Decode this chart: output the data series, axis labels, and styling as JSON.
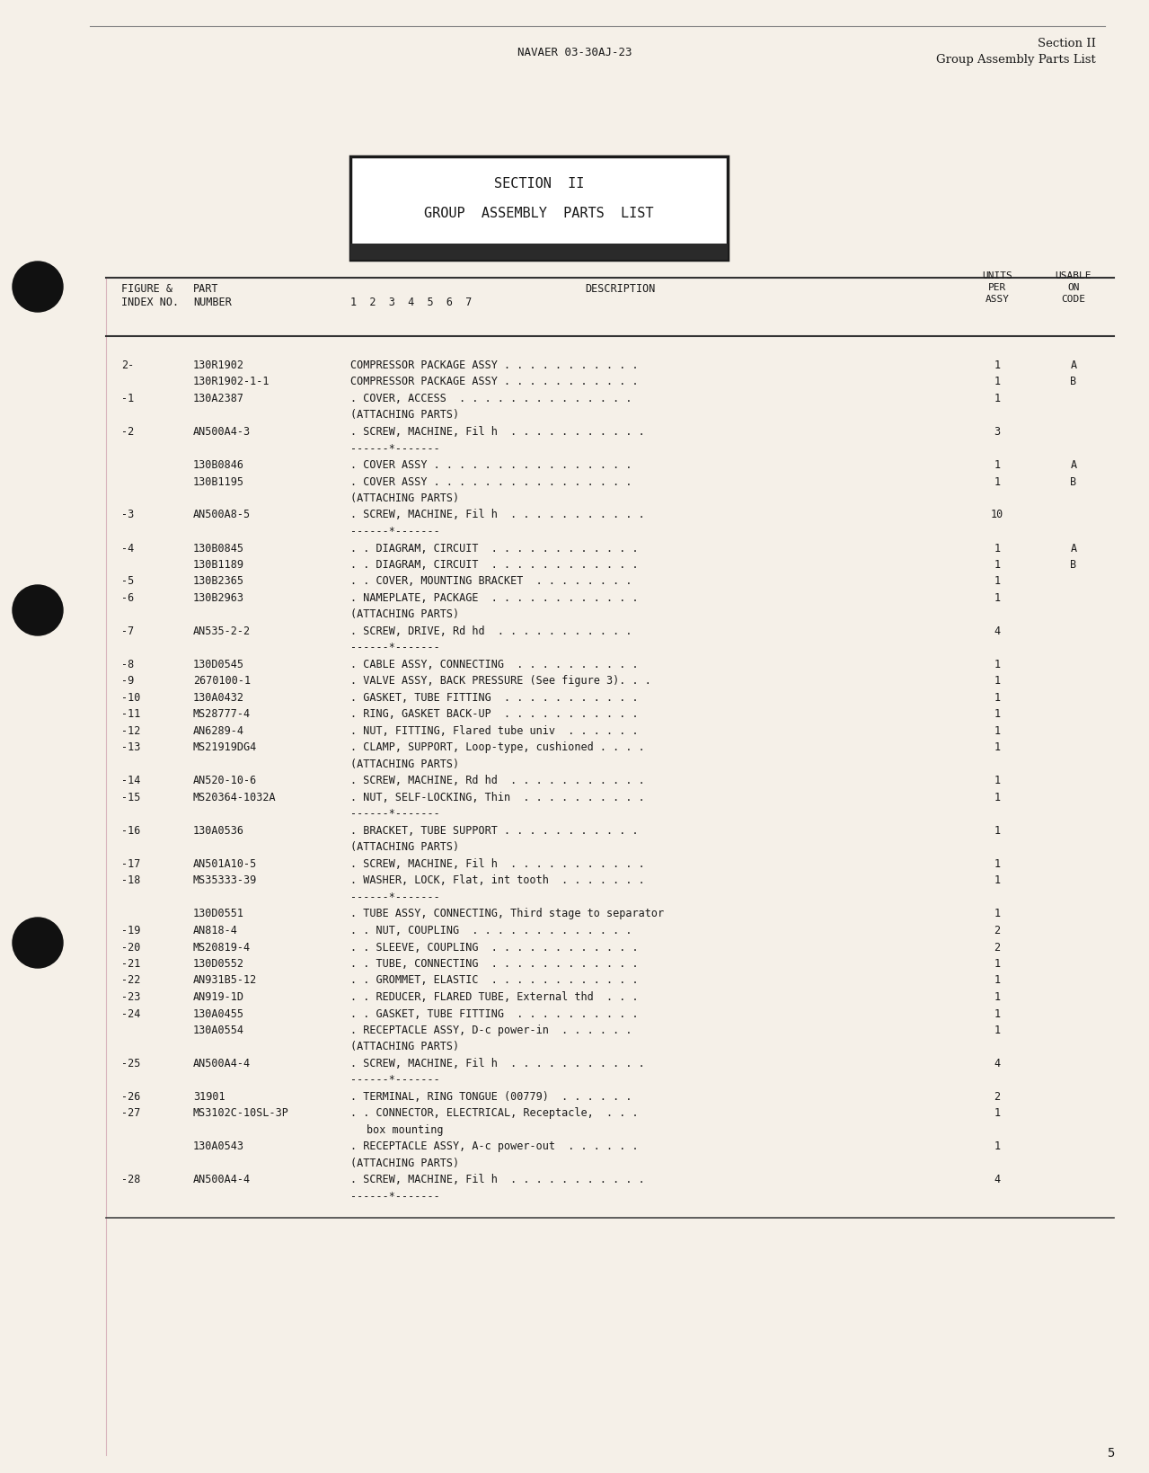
{
  "page_bg": "#f5f0e8",
  "header_text_center": "NAVAER 03-30AJ-23",
  "header_text_right_line1": "Section II",
  "header_text_right_line2": "Group Assembly Parts List",
  "section_box_line1": "SECTION  II",
  "section_box_line2": "GROUP  ASSEMBLY  PARTS  LIST",
  "col_headers": {
    "fig_index": "FIGURE &\nINDEX NO.",
    "part_num": "PART\nNUMBER",
    "description": "DESCRIPTION\n1  2  3  4  5  6  7",
    "units_per_assy": "UNITS\nPER\nASSY",
    "usable_on_code": "USABLE\nON\nCODE"
  },
  "rows": [
    {
      "index": "2-",
      "part": "130R1902",
      "desc": "COMPRESSOR PACKAGE ASSY . . . . . . . . . . .",
      "units": "1",
      "code": "A"
    },
    {
      "index": "",
      "part": "130R1902-1-1",
      "desc": "COMPRESSOR PACKAGE ASSY . . . . . . . . . . .",
      "units": "1",
      "code": "B"
    },
    {
      "index": "-1",
      "part": "130A2387",
      "desc": ". COVER, ACCESS  . . . . . . . . . . . . . .",
      "units": "1",
      "code": ""
    },
    {
      "index": "",
      "part": "",
      "desc": "(ATTACHING PARTS)",
      "units": "",
      "code": ""
    },
    {
      "index": "-2",
      "part": "AN500A4-3",
      "desc": ". SCREW, MACHINE, Fil h  . . . . . . . . . . .",
      "units": "3",
      "code": ""
    },
    {
      "index": "",
      "part": "",
      "desc": "------*-------",
      "units": "",
      "code": ""
    },
    {
      "index": "",
      "part": "130B0846",
      "desc": ". COVER ASSY . . . . . . . . . . . . . . . .",
      "units": "1",
      "code": "A"
    },
    {
      "index": "",
      "part": "130B1195",
      "desc": ". COVER ASSY . . . . . . . . . . . . . . . .",
      "units": "1",
      "code": "B"
    },
    {
      "index": "",
      "part": "",
      "desc": "(ATTACHING PARTS)",
      "units": "",
      "code": ""
    },
    {
      "index": "-3",
      "part": "AN500A8-5",
      "desc": ". SCREW, MACHINE, Fil h  . . . . . . . . . . .",
      "units": "10",
      "code": ""
    },
    {
      "index": "",
      "part": "",
      "desc": "------*-------",
      "units": "",
      "code": ""
    },
    {
      "index": "-4",
      "part": "130B0845",
      "desc": ". . DIAGRAM, CIRCUIT  . . . . . . . . . . . .",
      "units": "1",
      "code": "A"
    },
    {
      "index": "",
      "part": "130B1189",
      "desc": ". . DIAGRAM, CIRCUIT  . . . . . . . . . . . .",
      "units": "1",
      "code": "B"
    },
    {
      "index": "-5",
      "part": "130B2365",
      "desc": ". . COVER, MOUNTING BRACKET  . . . . . . . .",
      "units": "1",
      "code": ""
    },
    {
      "index": "-6",
      "part": "130B2963",
      "desc": ". NAMEPLATE, PACKAGE  . . . . . . . . . . . .",
      "units": "1",
      "code": ""
    },
    {
      "index": "",
      "part": "",
      "desc": "(ATTACHING PARTS)",
      "units": "",
      "code": ""
    },
    {
      "index": "-7",
      "part": "AN535-2-2",
      "desc": ". SCREW, DRIVE, Rd hd  . . . . . . . . . . .",
      "units": "4",
      "code": ""
    },
    {
      "index": "",
      "part": "",
      "desc": "------*-------",
      "units": "",
      "code": ""
    },
    {
      "index": "-8",
      "part": "130D0545",
      "desc": ". CABLE ASSY, CONNECTING  . . . . . . . . . .",
      "units": "1",
      "code": ""
    },
    {
      "index": "-9",
      "part": "2670100-1",
      "desc": ". VALVE ASSY, BACK PRESSURE (See figure 3). . .",
      "units": "1",
      "code": ""
    },
    {
      "index": "-10",
      "part": "130A0432",
      "desc": ". GASKET, TUBE FITTING  . . . . . . . . . . .",
      "units": "1",
      "code": ""
    },
    {
      "index": "-11",
      "part": "MS28777-4",
      "desc": ". RING, GASKET BACK-UP  . . . . . . . . . . .",
      "units": "1",
      "code": ""
    },
    {
      "index": "-12",
      "part": "AN6289-4",
      "desc": ". NUT, FITTING, Flared tube univ  . . . . . .",
      "units": "1",
      "code": ""
    },
    {
      "index": "-13",
      "part": "MS21919DG4",
      "desc": ". CLAMP, SUPPORT, Loop-type, cushioned . . . .",
      "units": "1",
      "code": ""
    },
    {
      "index": "",
      "part": "",
      "desc": "(ATTACHING PARTS)",
      "units": "",
      "code": ""
    },
    {
      "index": "-14",
      "part": "AN520-10-6",
      "desc": ". SCREW, MACHINE, Rd hd  . . . . . . . . . . .",
      "units": "1",
      "code": ""
    },
    {
      "index": "-15",
      "part": "MS20364-1032A",
      "desc": ". NUT, SELF-LOCKING, Thin  . . . . . . . . . .",
      "units": "1",
      "code": ""
    },
    {
      "index": "",
      "part": "",
      "desc": "------*-------",
      "units": "",
      "code": ""
    },
    {
      "index": "-16",
      "part": "130A0536",
      "desc": ". BRACKET, TUBE SUPPORT . . . . . . . . . . .",
      "units": "1",
      "code": ""
    },
    {
      "index": "",
      "part": "",
      "desc": "(ATTACHING PARTS)",
      "units": "",
      "code": ""
    },
    {
      "index": "-17",
      "part": "AN501A10-5",
      "desc": ". SCREW, MACHINE, Fil h  . . . . . . . . . . .",
      "units": "1",
      "code": ""
    },
    {
      "index": "-18",
      "part": "MS35333-39",
      "desc": ". WASHER, LOCK, Flat, int tooth  . . . . . . .",
      "units": "1",
      "code": ""
    },
    {
      "index": "",
      "part": "",
      "desc": "------*-------",
      "units": "",
      "code": ""
    },
    {
      "index": "",
      "part": "130D0551",
      "desc": ". TUBE ASSY, CONNECTING, Third stage to separator",
      "units": "1",
      "code": ""
    },
    {
      "index": "-19",
      "part": "AN818-4",
      "desc": ". . NUT, COUPLING  . . . . . . . . . . . . .",
      "units": "2",
      "code": ""
    },
    {
      "index": "-20",
      "part": "MS20819-4",
      "desc": ". . SLEEVE, COUPLING  . . . . . . . . . . . .",
      "units": "2",
      "code": ""
    },
    {
      "index": "-21",
      "part": "130D0552",
      "desc": ". . TUBE, CONNECTING  . . . . . . . . . . . .",
      "units": "1",
      "code": ""
    },
    {
      "index": "-22",
      "part": "AN931B5-12",
      "desc": ". . GROMMET, ELASTIC  . . . . . . . . . . . .",
      "units": "1",
      "code": ""
    },
    {
      "index": "-23",
      "part": "AN919-1D",
      "desc": ". . REDUCER, FLARED TUBE, External thd  . . .",
      "units": "1",
      "code": ""
    },
    {
      "index": "-24",
      "part": "130A0455",
      "desc": ". . GASKET, TUBE FITTING  . . . . . . . . . .",
      "units": "1",
      "code": ""
    },
    {
      "index": "",
      "part": "130A0554",
      "desc": ". RECEPTACLE ASSY, D-c power-in  . . . . . .",
      "units": "1",
      "code": ""
    },
    {
      "index": "",
      "part": "",
      "desc": "(ATTACHING PARTS)",
      "units": "",
      "code": ""
    },
    {
      "index": "-25",
      "part": "AN500A4-4",
      "desc": ". SCREW, MACHINE, Fil h  . . . . . . . . . . .",
      "units": "4",
      "code": ""
    },
    {
      "index": "",
      "part": "",
      "desc": "------*-------",
      "units": "",
      "code": ""
    },
    {
      "index": "-26",
      "part": "31901",
      "desc": ". TERMINAL, RING TONGUE (00779)  . . . . . .",
      "units": "2",
      "code": ""
    },
    {
      "index": "-27",
      "part": "MS3102C-10SL-3P",
      "desc": ". . CONNECTOR, ELECTRICAL, Receptacle,  . . .",
      "units": "1",
      "code": ""
    },
    {
      "index": "",
      "part": "",
      "desc": "box mounting",
      "units": "",
      "code": ""
    },
    {
      "index": "",
      "part": "130A0543",
      "desc": ". RECEPTACLE ASSY, A-c power-out  . . . . . .",
      "units": "1",
      "code": ""
    },
    {
      "index": "",
      "part": "",
      "desc": "(ATTACHING PARTS)",
      "units": "",
      "code": ""
    },
    {
      "index": "-28",
      "part": "AN500A4-4",
      "desc": ". SCREW, MACHINE, Fil h  . . . . . . . . . . .",
      "units": "4",
      "code": ""
    },
    {
      "index": "",
      "part": "",
      "desc": "------*-------",
      "units": "",
      "code": ""
    }
  ],
  "page_number": "5",
  "font_family": "monospace"
}
